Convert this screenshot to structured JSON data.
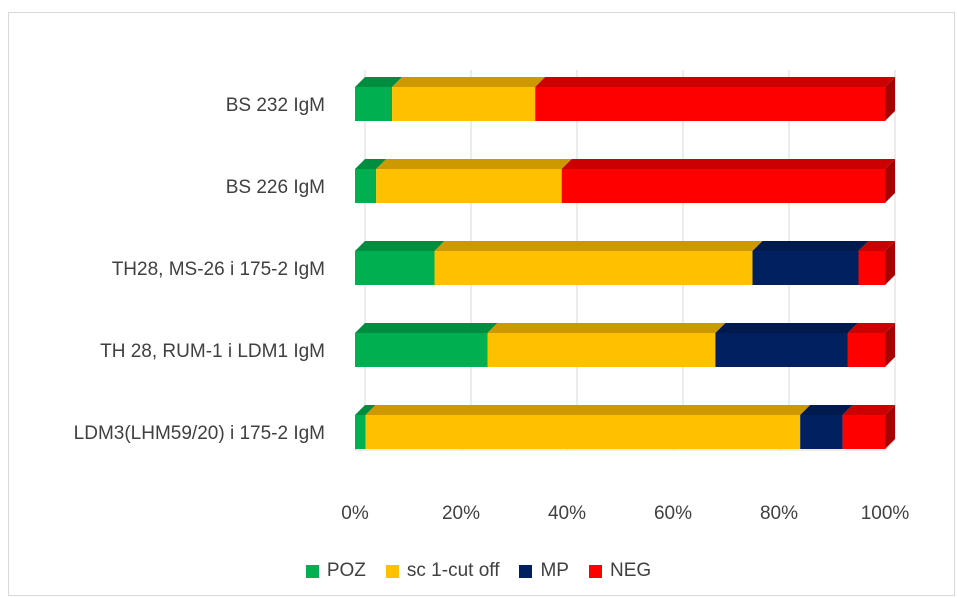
{
  "chart_data": {
    "type": "bar",
    "orientation": "horizontal",
    "stacked": "percent",
    "style": "3d",
    "categories": [
      "BS 232 IgM",
      "BS 226 IgM",
      "TH28, MS-26  i 175-2 IgM",
      "TH 28, RUM-1 i LDM1 IgM",
      "LDM3(LHM59/20) i 175-2 IgM"
    ],
    "series": [
      {
        "name": "POZ",
        "color": "#00b050",
        "values": [
          7,
          4,
          15,
          25,
          2
        ]
      },
      {
        "name": "sc 1-cut off",
        "color": "#ffc000",
        "values": [
          27,
          35,
          60,
          43,
          82
        ]
      },
      {
        "name": "MP",
        "color": "#002060",
        "values": [
          0,
          0,
          20,
          25,
          8
        ]
      },
      {
        "name": "NEG",
        "color": "#ff0000",
        "values": [
          66,
          61,
          5,
          7,
          8
        ]
      }
    ],
    "xticks": [
      "0%",
      "20%",
      "40%",
      "60%",
      "80%",
      "100%"
    ],
    "xlim": [
      0,
      100
    ],
    "grid": "vertical",
    "legend_position": "bottom"
  }
}
